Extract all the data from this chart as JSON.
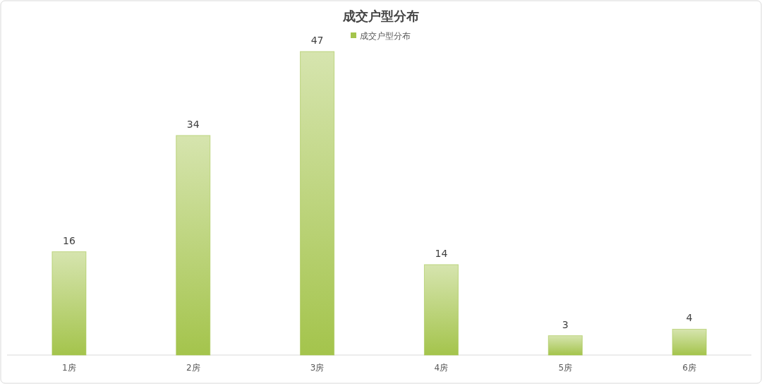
{
  "chart_data": {
    "type": "bar",
    "title": "成交户型分布",
    "categories": [
      "1房",
      "2房",
      "3房",
      "4房",
      "5房",
      "6房"
    ],
    "series": [
      {
        "name": "成交户型分布",
        "color": "#a4c44c",
        "values": [
          16,
          34,
          47,
          14,
          3,
          4
        ]
      }
    ],
    "data_labels": true,
    "legend": "top"
  }
}
